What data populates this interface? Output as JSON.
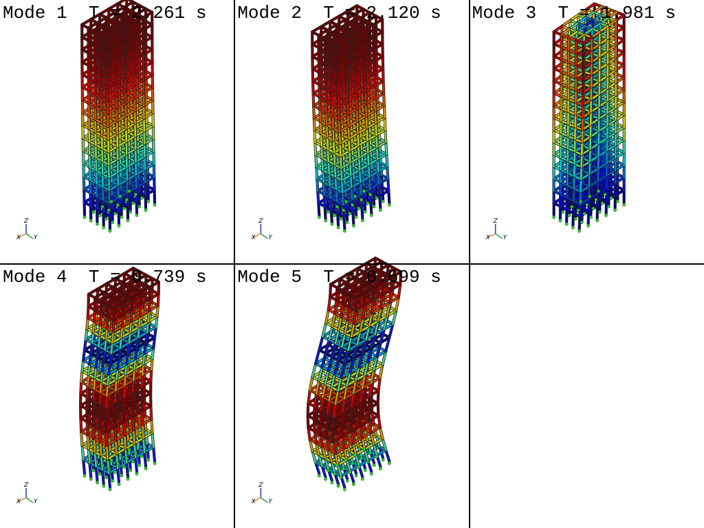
{
  "panels": [
    {
      "title": "Mode 1  T = 2.261 s"
    },
    {
      "title": "Mode 2  T = 2.120 s"
    },
    {
      "title": "Mode 3  T = 1.981 s"
    },
    {
      "title": "Mode 4  T = 0.739 s"
    },
    {
      "title": "Mode 5  T = 0.699 s"
    }
  ],
  "axis_labels": {
    "x": "X",
    "y": "Y",
    "z": "Z"
  }
}
